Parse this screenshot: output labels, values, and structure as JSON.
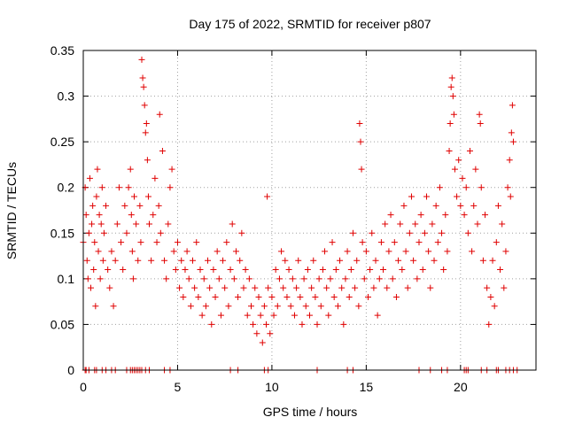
{
  "chart_data": {
    "type": "scatter",
    "title": "Day 175 of 2022, SRMTID for receiver p807",
    "xlabel": "GPS time / hours",
    "ylabel": "SRMTID / TECUs",
    "xlim": [
      0,
      24
    ],
    "ylim": [
      0,
      0.35
    ],
    "xticks": [
      0,
      5,
      10,
      15,
      20
    ],
    "xtick_labels": [
      "0",
      "5",
      "10",
      "15",
      "20"
    ],
    "yticks": [
      0,
      0.05,
      0.1,
      0.15,
      0.2,
      0.25,
      0.3,
      0.35
    ],
    "ytick_labels": [
      "0",
      "0.05",
      "0.1",
      "0.15",
      "0.2",
      "0.25",
      "0.3",
      "0.35"
    ],
    "grid": true,
    "marker": "+",
    "series": [
      {
        "name": "SRMTID",
        "color": "#e00000",
        "points": [
          [
            0.0,
            0.14
          ],
          [
            0.1,
            0.2
          ],
          [
            0.15,
            0.17
          ],
          [
            0.2,
            0.12
          ],
          [
            0.25,
            0.1
          ],
          [
            0.3,
            0.15
          ],
          [
            0.35,
            0.21
          ],
          [
            0.4,
            0.09
          ],
          [
            0.45,
            0.16
          ],
          [
            0.5,
            0.18
          ],
          [
            0.55,
            0.11
          ],
          [
            0.6,
            0.14
          ],
          [
            0.65,
            0.07
          ],
          [
            0.7,
            0.19
          ],
          [
            0.75,
            0.22
          ],
          [
            0.8,
            0.13
          ],
          [
            0.85,
            0.17
          ],
          [
            0.9,
            0.1
          ],
          [
            0.95,
            0.16
          ],
          [
            1.0,
            0.2
          ],
          [
            1.05,
            0.12
          ],
          [
            1.1,
            0.15
          ],
          [
            1.2,
            0.18
          ],
          [
            1.3,
            0.11
          ],
          [
            1.4,
            0.09
          ],
          [
            1.5,
            0.13
          ],
          [
            1.6,
            0.07
          ],
          [
            1.7,
            0.12
          ],
          [
            1.8,
            0.16
          ],
          [
            1.9,
            0.2
          ],
          [
            2.0,
            0.14
          ],
          [
            2.1,
            0.11
          ],
          [
            2.2,
            0.18
          ],
          [
            2.3,
            0.15
          ],
          [
            2.4,
            0.2
          ],
          [
            2.5,
            0.22
          ],
          [
            2.55,
            0.17
          ],
          [
            2.6,
            0.13
          ],
          [
            2.65,
            0.1
          ],
          [
            2.7,
            0.19
          ],
          [
            2.8,
            0.16
          ],
          [
            2.9,
            0.12
          ],
          [
            3.0,
            0.18
          ],
          [
            3.05,
            0.14
          ],
          [
            3.1,
            0.34
          ],
          [
            3.15,
            0.32
          ],
          [
            3.2,
            0.31
          ],
          [
            3.25,
            0.29
          ],
          [
            3.3,
            0.26
          ],
          [
            3.35,
            0.27
          ],
          [
            3.4,
            0.23
          ],
          [
            3.45,
            0.19
          ],
          [
            3.5,
            0.16
          ],
          [
            3.6,
            0.12
          ],
          [
            3.7,
            0.17
          ],
          [
            3.8,
            0.21
          ],
          [
            3.9,
            0.14
          ],
          [
            4.0,
            0.18
          ],
          [
            4.05,
            0.28
          ],
          [
            4.1,
            0.15
          ],
          [
            4.2,
            0.24
          ],
          [
            4.3,
            0.12
          ],
          [
            4.4,
            0.1
          ],
          [
            4.5,
            0.16
          ],
          [
            4.6,
            0.2
          ],
          [
            4.7,
            0.22
          ],
          [
            4.8,
            0.13
          ],
          [
            4.9,
            0.11
          ],
          [
            5.0,
            0.14
          ],
          [
            5.1,
            0.09
          ],
          [
            5.2,
            0.12
          ],
          [
            5.3,
            0.08
          ],
          [
            5.4,
            0.11
          ],
          [
            5.5,
            0.13
          ],
          [
            5.6,
            0.1
          ],
          [
            5.7,
            0.07
          ],
          [
            5.8,
            0.12
          ],
          [
            5.9,
            0.09
          ],
          [
            6.0,
            0.14
          ],
          [
            6.1,
            0.08
          ],
          [
            6.2,
            0.11
          ],
          [
            6.3,
            0.06
          ],
          [
            6.4,
            0.1
          ],
          [
            6.5,
            0.07
          ],
          [
            6.6,
            0.12
          ],
          [
            6.7,
            0.09
          ],
          [
            6.8,
            0.05
          ],
          [
            6.9,
            0.11
          ],
          [
            7.0,
            0.08
          ],
          [
            7.1,
            0.13
          ],
          [
            7.2,
            0.1
          ],
          [
            7.3,
            0.06
          ],
          [
            7.4,
            0.12
          ],
          [
            7.5,
            0.09
          ],
          [
            7.6,
            0.14
          ],
          [
            7.7,
            0.07
          ],
          [
            7.8,
            0.11
          ],
          [
            7.9,
            0.16
          ],
          [
            8.0,
            0.1
          ],
          [
            8.1,
            0.13
          ],
          [
            8.2,
            0.08
          ],
          [
            8.3,
            0.12
          ],
          [
            8.4,
            0.15
          ],
          [
            8.5,
            0.09
          ],
          [
            8.6,
            0.11
          ],
          [
            8.7,
            0.06
          ],
          [
            8.8,
            0.1
          ],
          [
            8.9,
            0.07
          ],
          [
            9.0,
            0.05
          ],
          [
            9.1,
            0.09
          ],
          [
            9.2,
            0.04
          ],
          [
            9.3,
            0.08
          ],
          [
            9.4,
            0.06
          ],
          [
            9.5,
            0.03
          ],
          [
            9.6,
            0.07
          ],
          [
            9.7,
            0.05
          ],
          [
            9.75,
            0.19
          ],
          [
            9.8,
            0.09
          ],
          [
            9.9,
            0.04
          ],
          [
            10.0,
            0.08
          ],
          [
            10.1,
            0.06
          ],
          [
            10.2,
            0.11
          ],
          [
            10.3,
            0.07
          ],
          [
            10.4,
            0.1
          ],
          [
            10.5,
            0.13
          ],
          [
            10.6,
            0.09
          ],
          [
            10.7,
            0.12
          ],
          [
            10.8,
            0.08
          ],
          [
            10.9,
            0.11
          ],
          [
            11.0,
            0.07
          ],
          [
            11.1,
            0.1
          ],
          [
            11.2,
            0.06
          ],
          [
            11.3,
            0.09
          ],
          [
            11.4,
            0.12
          ],
          [
            11.5,
            0.08
          ],
          [
            11.6,
            0.05
          ],
          [
            11.7,
            0.1
          ],
          [
            11.8,
            0.07
          ],
          [
            11.9,
            0.11
          ],
          [
            12.0,
            0.06
          ],
          [
            12.1,
            0.09
          ],
          [
            12.2,
            0.12
          ],
          [
            12.3,
            0.08
          ],
          [
            12.4,
            0.05
          ],
          [
            12.5,
            0.1
          ],
          [
            12.6,
            0.07
          ],
          [
            12.7,
            0.11
          ],
          [
            12.8,
            0.13
          ],
          [
            12.9,
            0.09
          ],
          [
            13.0,
            0.06
          ],
          [
            13.1,
            0.1
          ],
          [
            13.2,
            0.14
          ],
          [
            13.3,
            0.08
          ],
          [
            13.4,
            0.11
          ],
          [
            13.5,
            0.07
          ],
          [
            13.6,
            0.12
          ],
          [
            13.7,
            0.09
          ],
          [
            13.8,
            0.05
          ],
          [
            13.9,
            0.1
          ],
          [
            14.0,
            0.13
          ],
          [
            14.1,
            0.08
          ],
          [
            14.2,
            0.11
          ],
          [
            14.3,
            0.15
          ],
          [
            14.4,
            0.09
          ],
          [
            14.5,
            0.12
          ],
          [
            14.6,
            0.07
          ],
          [
            14.65,
            0.27
          ],
          [
            14.7,
            0.25
          ],
          [
            14.75,
            0.22
          ],
          [
            14.8,
            0.14
          ],
          [
            14.9,
            0.1
          ],
          [
            15.0,
            0.13
          ],
          [
            15.1,
            0.08
          ],
          [
            15.2,
            0.11
          ],
          [
            15.3,
            0.15
          ],
          [
            15.4,
            0.09
          ],
          [
            15.5,
            0.12
          ],
          [
            15.6,
            0.06
          ],
          [
            15.7,
            0.1
          ],
          [
            15.8,
            0.14
          ],
          [
            15.9,
            0.11
          ],
          [
            16.0,
            0.16
          ],
          [
            16.1,
            0.09
          ],
          [
            16.2,
            0.13
          ],
          [
            16.3,
            0.17
          ],
          [
            16.4,
            0.1
          ],
          [
            16.5,
            0.14
          ],
          [
            16.6,
            0.08
          ],
          [
            16.7,
            0.12
          ],
          [
            16.8,
            0.16
          ],
          [
            16.9,
            0.11
          ],
          [
            17.0,
            0.18
          ],
          [
            17.1,
            0.13
          ],
          [
            17.2,
            0.09
          ],
          [
            17.3,
            0.15
          ],
          [
            17.4,
            0.19
          ],
          [
            17.5,
            0.12
          ],
          [
            17.6,
            0.16
          ],
          [
            17.7,
            0.1
          ],
          [
            17.8,
            0.14
          ],
          [
            17.9,
            0.17
          ],
          [
            18.0,
            0.11
          ],
          [
            18.1,
            0.15
          ],
          [
            18.2,
            0.19
          ],
          [
            18.3,
            0.13
          ],
          [
            18.4,
            0.09
          ],
          [
            18.5,
            0.16
          ],
          [
            18.6,
            0.12
          ],
          [
            18.7,
            0.18
          ],
          [
            18.8,
            0.14
          ],
          [
            18.9,
            0.2
          ],
          [
            19.0,
            0.15
          ],
          [
            19.1,
            0.11
          ],
          [
            19.2,
            0.17
          ],
          [
            19.3,
            0.13
          ],
          [
            19.4,
            0.24
          ],
          [
            19.45,
            0.27
          ],
          [
            19.5,
            0.31
          ],
          [
            19.55,
            0.32
          ],
          [
            19.6,
            0.3
          ],
          [
            19.65,
            0.28
          ],
          [
            19.7,
            0.22
          ],
          [
            19.8,
            0.19
          ],
          [
            19.9,
            0.23
          ],
          [
            20.0,
            0.18
          ],
          [
            20.1,
            0.21
          ],
          [
            20.2,
            0.17
          ],
          [
            20.3,
            0.2
          ],
          [
            20.4,
            0.15
          ],
          [
            20.5,
            0.24
          ],
          [
            20.6,
            0.13
          ],
          [
            20.7,
            0.18
          ],
          [
            20.8,
            0.22
          ],
          [
            20.9,
            0.16
          ],
          [
            21.0,
            0.28
          ],
          [
            21.05,
            0.27
          ],
          [
            21.1,
            0.2
          ],
          [
            21.2,
            0.12
          ],
          [
            21.3,
            0.17
          ],
          [
            21.4,
            0.09
          ],
          [
            21.5,
            0.05
          ],
          [
            21.6,
            0.08
          ],
          [
            21.7,
            0.12
          ],
          [
            21.8,
            0.07
          ],
          [
            21.9,
            0.14
          ],
          [
            22.0,
            0.18
          ],
          [
            22.1,
            0.11
          ],
          [
            22.2,
            0.16
          ],
          [
            22.3,
            0.09
          ],
          [
            22.4,
            0.13
          ],
          [
            22.5,
            0.2
          ],
          [
            22.6,
            0.23
          ],
          [
            22.65,
            0.19
          ],
          [
            22.7,
            0.26
          ],
          [
            22.75,
            0.29
          ],
          [
            22.8,
            0.25
          ]
        ],
        "zero_x": [
          0.1,
          0.15,
          0.3,
          0.6,
          0.7,
          1.0,
          1.2,
          1.5,
          1.7,
          2.3,
          2.5,
          2.6,
          2.7,
          2.8,
          2.9,
          3.0,
          3.1,
          3.3,
          3.5,
          4.3,
          4.6,
          7.8,
          8.2,
          9.6,
          9.8,
          12.4,
          14.0,
          14.3,
          17.8,
          18.4,
          19.0,
          19.3,
          20.2,
          20.3,
          20.4,
          21.1,
          21.4,
          21.9,
          22.0,
          22.4,
          22.6,
          22.8,
          23.0
        ]
      }
    ]
  }
}
